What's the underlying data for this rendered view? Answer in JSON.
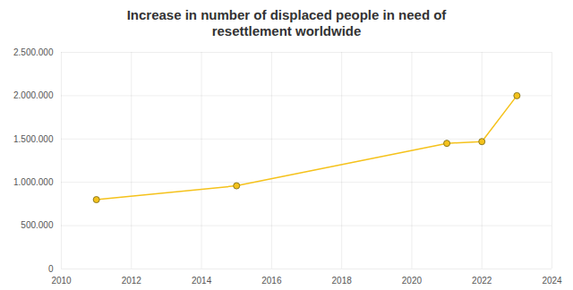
{
  "chart_data": {
    "type": "line",
    "title": "Increase in number of displaced people in need of resettlement worldwide",
    "x": [
      2011,
      2015,
      2021,
      2022,
      2023
    ],
    "series": [
      {
        "name": "Displaced people in need of resettlement",
        "color": "#f5c21b",
        "values": [
          800000,
          960000,
          1450000,
          1470000,
          2000000
        ]
      }
    ],
    "xlim": [
      2010,
      2024
    ],
    "xticks": [
      2010,
      2012,
      2014,
      2016,
      2018,
      2020,
      2022,
      2024
    ],
    "ylim": [
      0,
      2500000
    ],
    "yticks": [
      0,
      {
        "value": 500000,
        "label": "500.000"
      },
      {
        "value": 1000000,
        "label": "1.000.000"
      },
      {
        "value": 1500000,
        "label": "1.500.000"
      },
      {
        "value": 2000000,
        "label": "2.000.000"
      },
      {
        "value": 2500000,
        "label": "2.500.000"
      }
    ],
    "grid": true,
    "marker": "circle"
  }
}
